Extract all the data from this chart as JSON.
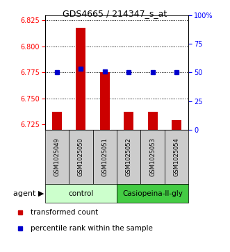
{
  "title": "GDS4665 / 214347_s_at",
  "samples": [
    "GSM1025049",
    "GSM1025050",
    "GSM1025051",
    "GSM1025052",
    "GSM1025053",
    "GSM1025054"
  ],
  "red_values": [
    6.737,
    6.818,
    6.775,
    6.737,
    6.737,
    6.729
  ],
  "blue_values": [
    50,
    53,
    51,
    50,
    50,
    50
  ],
  "ylim_left": [
    6.72,
    6.83
  ],
  "ylim_right": [
    0,
    100
  ],
  "left_ticks": [
    6.725,
    6.75,
    6.775,
    6.8,
    6.825
  ],
  "right_ticks": [
    0,
    25,
    50,
    75,
    100
  ],
  "right_tick_labels": [
    "0",
    "25",
    "50",
    "75",
    "100%"
  ],
  "bar_color": "#cc0000",
  "dot_color": "#0000cc",
  "sample_box_color": "#cccccc",
  "control_color": "#ccffcc",
  "casio_color": "#44cc44",
  "legend_red": "transformed count",
  "legend_blue": "percentile rank within the sample",
  "agent_label": "agent",
  "grid_vals": [
    6.75,
    6.775,
    6.8,
    6.825
  ],
  "bar_width": 0.4
}
